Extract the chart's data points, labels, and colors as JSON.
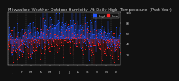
{
  "title": "Milwaukee Weather Outdoor Humidity  At Daily High  Temperature  (Past Year)",
  "legend_labels": [
    "High",
    "Low"
  ],
  "legend_colors": [
    "#2255ff",
    "#ff2222"
  ],
  "bg_color": "#111111",
  "plot_bg": "#111111",
  "grid_color": "#555555",
  "bar_color_high": "#2255ff",
  "bar_color_low": "#ff2222",
  "ylim": [
    0,
    100
  ],
  "y_ticks": [
    20,
    40,
    60,
    80,
    100
  ],
  "num_points": 365,
  "seed": 42,
  "mean_high": 58,
  "mean_low": 42,
  "std_high": 16,
  "std_low": 14,
  "seasonal_amp": 10,
  "title_fontsize": 3.8,
  "tick_fontsize": 2.8,
  "legend_fontsize": 3.0,
  "text_color": "#cccccc"
}
